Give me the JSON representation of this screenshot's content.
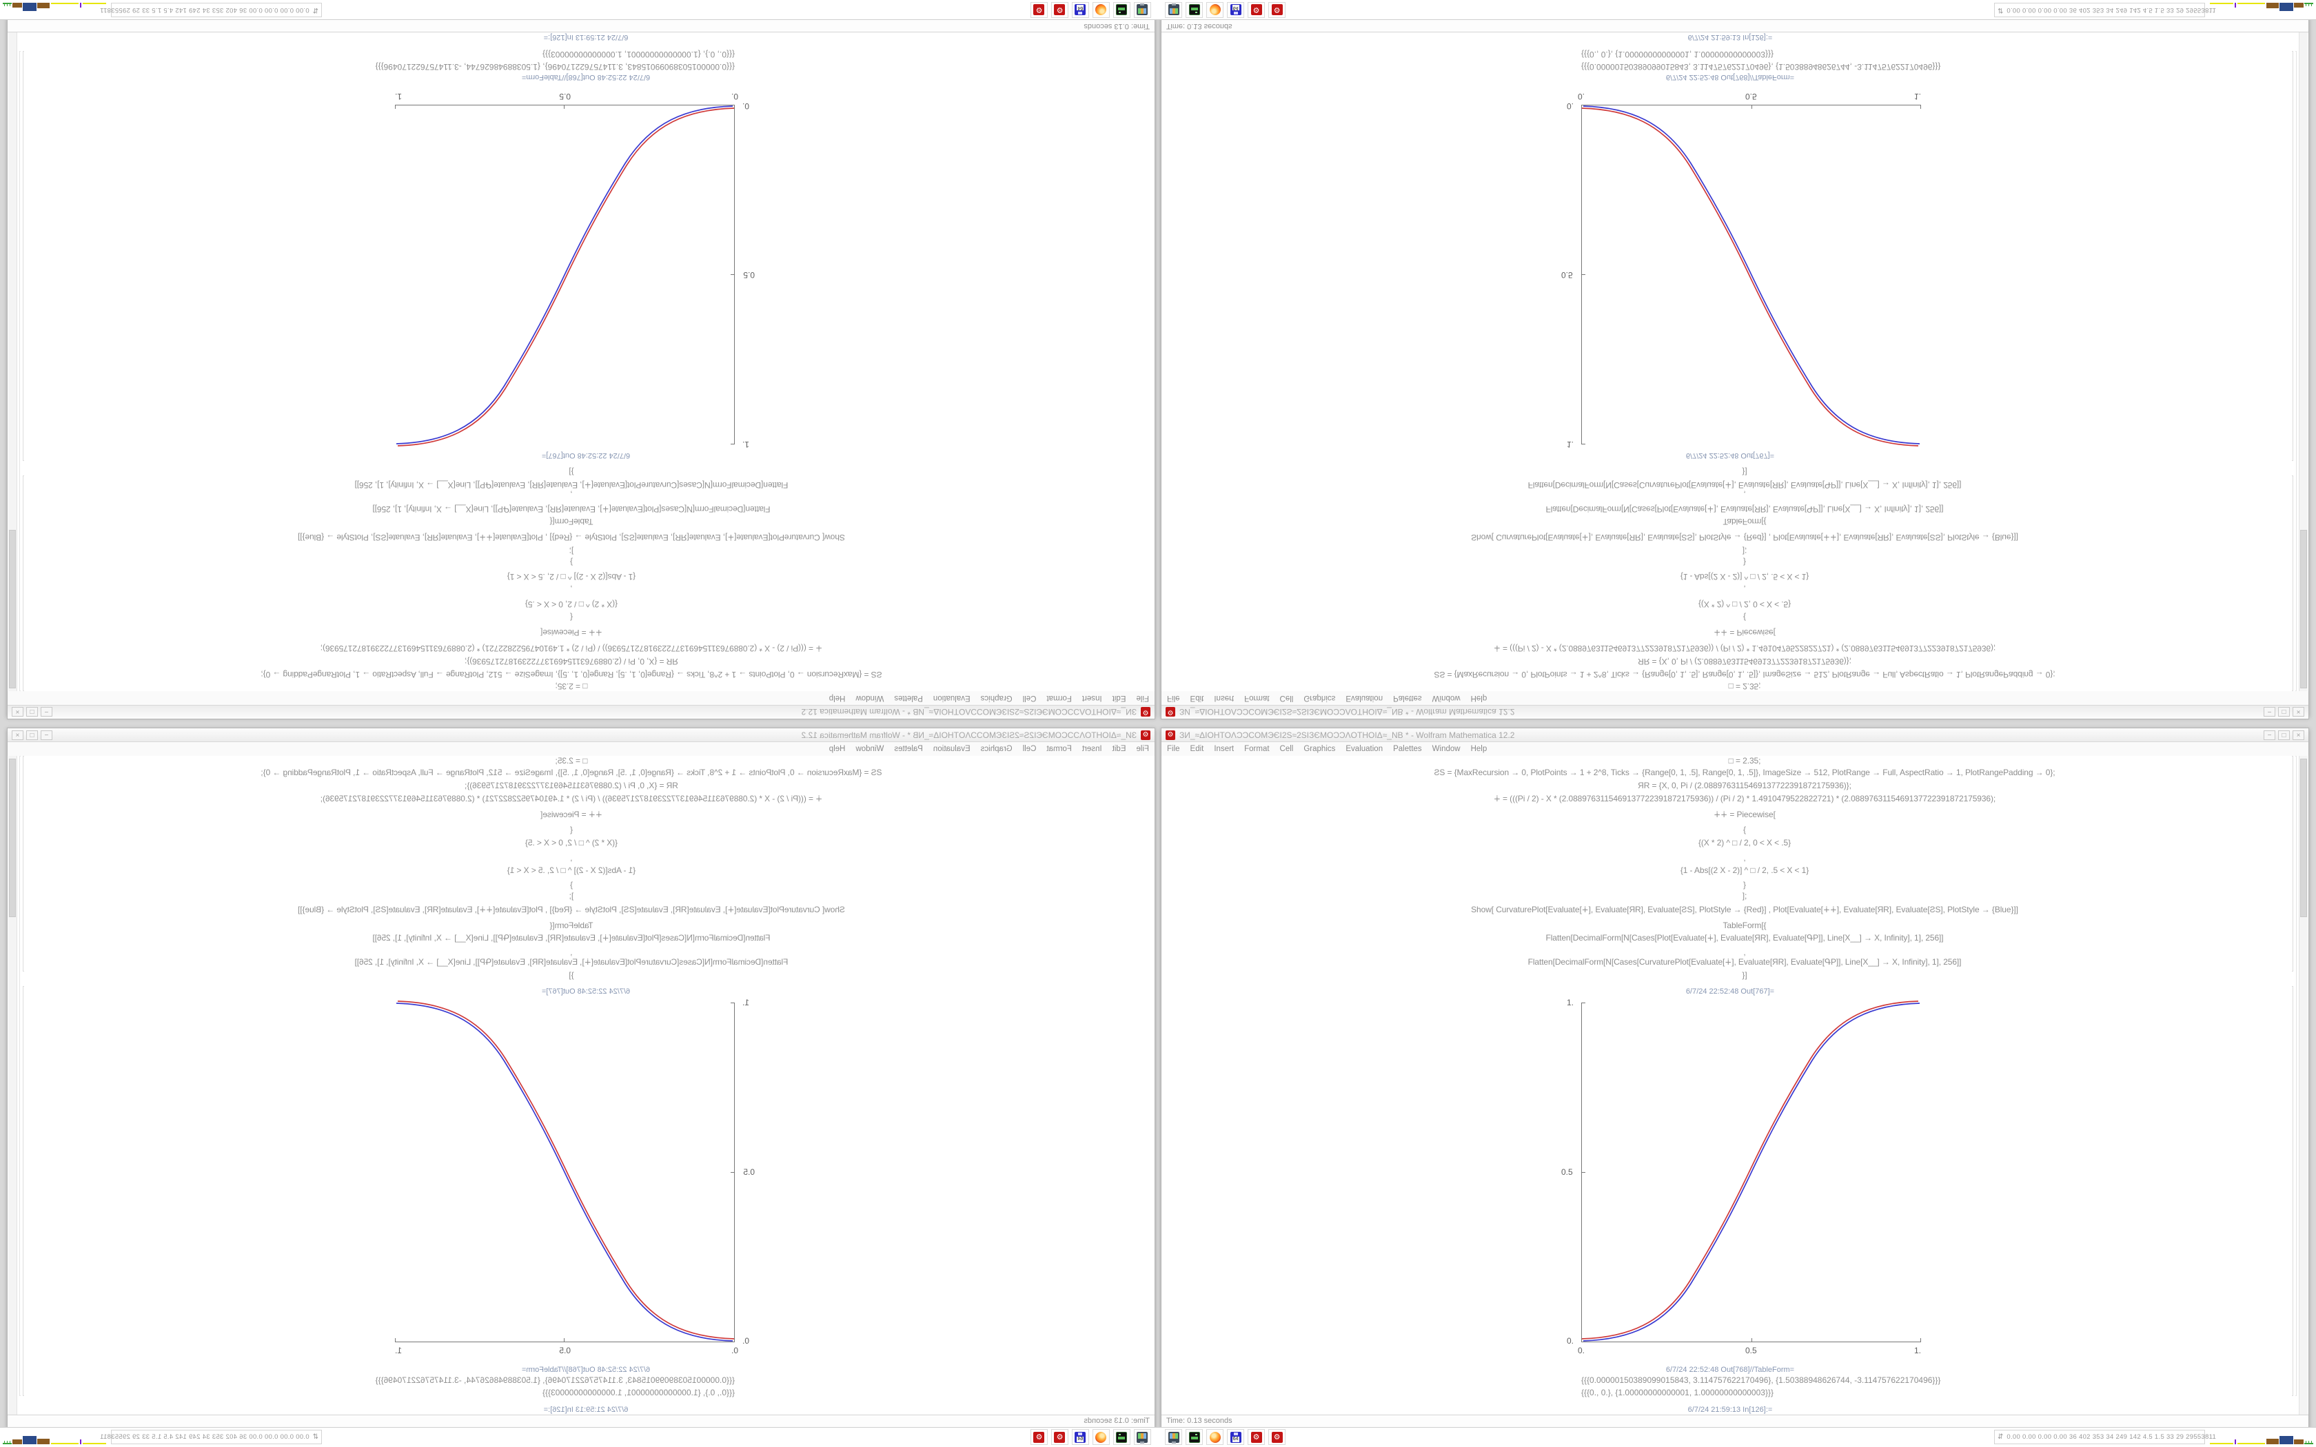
{
  "window": {
    "title": "ЗИ_≈ΔIOHTOΛƆƆCOMЭЄI2S≈2SIЗЄMOƆƆΛOTHOIΔ≈_NB * - Wolfram Mathematica 12.2",
    "app_icon_glyph": "⚙",
    "controls": [
      "−",
      "□",
      "×"
    ],
    "menu": [
      "File",
      "Edit",
      "Insert",
      "Format",
      "Cell",
      "Graphics",
      "Evaluation",
      "Palettes",
      "Window",
      "Help"
    ],
    "code_lines": [
      "□ = 2.35;",
      "ƧS = {MaxRecursion → 0, PlotPoints → 1 + 2^8, Ticks → {Range[0, 1, .5], Range[0, 1, .5]}, ImageSize → 512, PlotRange → Full, AspectRatio → 1, PlotRangePadding → 0};",
      "ЯR = {X, 0, Pi / (2.0889763115469137722391872175936)};",
      "∔ = (((Pi / 2) - X * (2.0889763115469137722391872175936)) / (Pi / 2) * 1.4910479522822721) * (2.0889763115469137722391872175936);",
      "∔∔ = Piecewise[",
      "{",
      "{(X * 2) ^ □ / 2, 0 < X < .5}",
      ",",
      "{1 - Abs[(2 X - 2)] ^ □ / 2, .5 < X < 1}",
      "}",
      "];",
      "Show[  CurvaturePlot[Evaluate[∔], Evaluate[ЯR], Evaluate[ƧS], PlotStyle → {Red}]  ,  Plot[Evaluate[∔∔], Evaluate[ЯR], Evaluate[ƧS], PlotStyle → {Blue}]]",
      "TableForm[{",
      "Flatten[DecimalForm[N[Cases[Plot[Evaluate[∔], Evaluate[ЯR], Evaluate[ԳP]], Line[X__] → X, Infinity], 1], 256]]",
      ",",
      "Flatten[DecimalForm[N[Cases[CurvaturePlot[Evaluate[∔], Evaluate[ЯR], Evaluate[ԳP]], Line[X__] → X, Infinity], 1], 256]]",
      "}]"
    ],
    "out1_label": "6/7/24 22:52:48 Out[767]=",
    "out2_label": "6/7/24 22:52:48 Out[768]//TableForm=",
    "out2_values": [
      "{{{0.00000150389099015843, 3.114757622170496}, {1.50388948626744, -3.114757622170496}}}",
      "{{{0., 0.}, {1.00000000000001, 1.00000000000003}}}"
    ],
    "next_in_label": "6/7/24 21:59:13 In[126]:=",
    "status": "Time: 0.13 seconds"
  },
  "plot": {
    "x_ticks": [
      "0.",
      "0.5",
      "1."
    ],
    "y_ticks": [
      "0.",
      "0.5",
      "1."
    ],
    "curve_red": "#d03a3a",
    "curve_blue": "#3a3ad0",
    "description": "S-shaped ease curve from (0,0) to (1,1), red CurvaturePlot and blue Plot nearly overlapping"
  },
  "taskbar": {
    "icons": [
      {
        "name": "system-monitor"
      },
      {
        "name": "disk-utility"
      },
      {
        "name": "firefox"
      },
      {
        "name": "floppy-64",
        "label": "64"
      },
      {
        "name": "mathematica-kernel",
        "glyph": "⚙"
      },
      {
        "name": "mathematica-kernel",
        "glyph": "⚙"
      }
    ],
    "tray_updown_glyph": "⇵",
    "tray_text": "0.00 0.00 0.00 0.00   36   402   353   34   249   142   4.5   1.5   33   29   29553811"
  },
  "layout_note": "Four-quadrant composite: bottom-right screen normal, bottom-left horizontally mirrored, top half is 180° rotation of bottom half"
}
